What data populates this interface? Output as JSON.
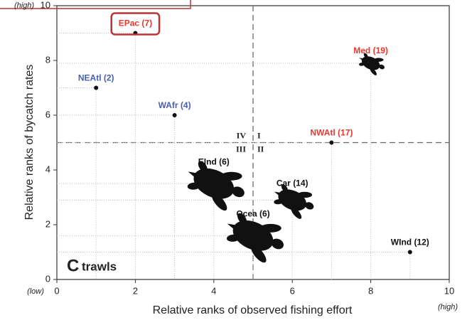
{
  "chart_data": {
    "type": "scatter",
    "xlabel": "Relative ranks of observed fishing effort",
    "ylabel": "Relative ranks of bycatch rates",
    "panel_letter": "C",
    "panel_title": "trawls",
    "x_low_label": "(low)",
    "x_high_label": "(high)",
    "y_high_label": "(high)",
    "xlim": [
      0,
      10
    ],
    "ylim": [
      0,
      10
    ],
    "xticks": [
      0,
      2,
      4,
      6,
      8,
      10
    ],
    "yticks": [
      0,
      2,
      4,
      6,
      8,
      10
    ],
    "divider_x": 5,
    "divider_y": 5,
    "quadrants": [
      "IV",
      "I",
      "III",
      "II"
    ],
    "points": [
      {
        "label": "EPac (7)",
        "x": 2,
        "y": 9,
        "color": "#e53a2e",
        "marker": "dot",
        "highlight": true
      },
      {
        "label": "NEAtl (2)",
        "x": 1,
        "y": 7,
        "color": "#4a5fb0",
        "marker": "dot"
      },
      {
        "label": "WAfr (4)",
        "x": 3,
        "y": 6,
        "color": "#4a5fb0",
        "marker": "dot"
      },
      {
        "label": "Med (19)",
        "x": 8,
        "y": 7.9,
        "color": "#e53a2e",
        "marker": "turtle-s"
      },
      {
        "label": "NWAtl (17)",
        "x": 7,
        "y": 5,
        "color": "#e53a2e",
        "marker": "dot"
      },
      {
        "label": "EInd (6)",
        "x": 4,
        "y": 3.5,
        "color": "#111111",
        "marker": "turtle-l"
      },
      {
        "label": "Car (14)",
        "x": 6,
        "y": 2.9,
        "color": "#111111",
        "marker": "turtle-m"
      },
      {
        "label": "Ocea (6)",
        "x": 5,
        "y": 1.6,
        "color": "#111111",
        "marker": "turtle-l"
      },
      {
        "label": "WInd (12)",
        "x": 9,
        "y": 1,
        "color": "#111111",
        "marker": "dot"
      }
    ]
  }
}
